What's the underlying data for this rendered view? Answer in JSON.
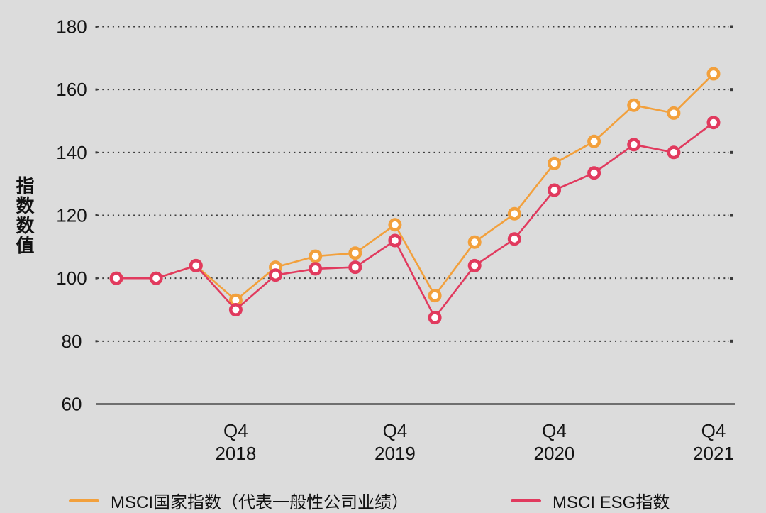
{
  "figure": {
    "background_color": "#DCDCDC",
    "text_color": "#141414",
    "gridline_color": "#3A3A3A",
    "axisline_color": "#2E2E2E"
  },
  "axis": {
    "y_title": "指数数值",
    "y_ticks": [
      180,
      160,
      140,
      120,
      100,
      80,
      60
    ]
  },
  "chart_data": {
    "type": "line",
    "title": "",
    "xlabel": "",
    "ylabel": "指数数值",
    "ylim": [
      60,
      180
    ],
    "y_tick_step": 20,
    "grid": "horizontal-dotted",
    "legend_position": "bottom",
    "categories": [
      "2018 Q1",
      "2018 Q2",
      "2018 Q3",
      "2018 Q4",
      "2019 Q1",
      "2019 Q2",
      "2019 Q3",
      "2019 Q4",
      "2020 Q1",
      "2020 Q2",
      "2020 Q3",
      "2020 Q4",
      "2021 Q1",
      "2021 Q2",
      "2021 Q3",
      "2021 Q4"
    ],
    "x_tick_labels": [
      {
        "index": 3,
        "lines": [
          "Q4",
          "2018"
        ]
      },
      {
        "index": 7,
        "lines": [
          "Q4",
          "2019"
        ]
      },
      {
        "index": 11,
        "lines": [
          "Q4",
          "2020"
        ]
      },
      {
        "index": 15,
        "lines": [
          "Q4",
          "2021"
        ]
      }
    ],
    "series": [
      {
        "name": "MSCI国家指数（代表一般性公司业绩）",
        "color": "#F2A03C",
        "marker": "open-circle",
        "values": [
          100,
          100,
          104,
          93,
          103.5,
          107,
          108,
          117,
          94.5,
          111.5,
          120.5,
          136.5,
          143.5,
          155,
          152.5,
          165
        ]
      },
      {
        "name": "MSCI ESG指数",
        "color": "#E13A5E",
        "marker": "open-circle",
        "values": [
          100,
          100,
          104,
          90,
          101,
          103,
          103.5,
          112,
          87.5,
          104,
          112.5,
          128,
          133.5,
          142.5,
          140,
          149.5
        ]
      }
    ]
  }
}
